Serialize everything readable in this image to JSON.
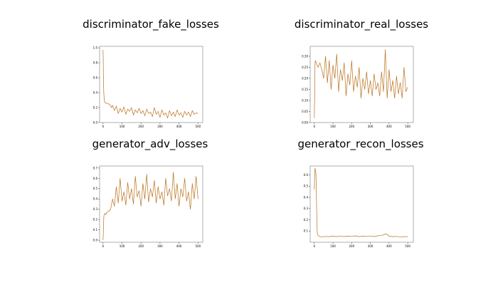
{
  "colors": {
    "line": "#b8701c",
    "axis": "#7a7a7a"
  },
  "chart_data": [
    {
      "type": "line",
      "title": "discriminator_fake_losses",
      "xlim": [
        -18,
        525
      ],
      "ylim": [
        0,
        1.02
      ],
      "xticks": [
        0,
        100,
        200,
        300,
        400,
        500
      ],
      "yticks": [
        0.0,
        0.2,
        0.4,
        0.6,
        0.8,
        1.0
      ],
      "ytick_labels": [
        "0.0",
        "0.2",
        "0.4",
        "0.6",
        "0.8",
        "1.0"
      ],
      "grid": false,
      "series": [
        {
          "x": [
            0,
            1,
            2,
            4,
            6,
            8,
            10,
            15,
            20,
            25,
            30,
            35,
            40,
            45,
            50,
            60,
            70,
            80,
            90,
            100,
            110,
            120,
            130,
            140,
            150,
            160,
            170,
            180,
            190,
            200,
            210,
            220,
            230,
            240,
            250,
            260,
            270,
            280,
            290,
            300,
            310,
            320,
            330,
            340,
            350,
            360,
            370,
            380,
            390,
            400,
            410,
            420,
            430,
            440,
            450,
            460,
            470,
            480,
            490,
            500
          ],
          "y": [
            0.97,
            0.85,
            0.6,
            0.4,
            0.32,
            0.28,
            0.27,
            0.26,
            0.26,
            0.25,
            0.25,
            0.24,
            0.22,
            0.2,
            0.23,
            0.16,
            0.22,
            0.12,
            0.19,
            0.14,
            0.21,
            0.11,
            0.18,
            0.15,
            0.2,
            0.1,
            0.17,
            0.13,
            0.19,
            0.12,
            0.16,
            0.09,
            0.18,
            0.12,
            0.14,
            0.08,
            0.2,
            0.11,
            0.15,
            0.07,
            0.17,
            0.1,
            0.13,
            0.06,
            0.16,
            0.09,
            0.14,
            0.08,
            0.17,
            0.1,
            0.13,
            0.07,
            0.15,
            0.1,
            0.14,
            0.08,
            0.16,
            0.11,
            0.13,
            0.12
          ]
        }
      ]
    },
    {
      "type": "line",
      "title": "discriminator_real_losses",
      "xlim": [
        -22,
        530
      ],
      "ylim": [
        0,
        0.345
      ],
      "xticks": [
        0,
        100,
        200,
        300,
        400,
        500
      ],
      "yticks": [
        0.0,
        0.05,
        0.1,
        0.15,
        0.2,
        0.25,
        0.3
      ],
      "ytick_labels": [
        "0.00",
        "0.05",
        "0.10",
        "0.15",
        "0.20",
        "0.25",
        "0.30"
      ],
      "grid": false,
      "series": [
        {
          "x": [
            0,
            2,
            4,
            6,
            10,
            15,
            20,
            30,
            40,
            50,
            60,
            70,
            80,
            90,
            100,
            110,
            120,
            130,
            140,
            150,
            160,
            170,
            180,
            190,
            200,
            210,
            220,
            230,
            240,
            250,
            260,
            270,
            280,
            290,
            300,
            310,
            320,
            330,
            340,
            350,
            360,
            370,
            380,
            390,
            400,
            410,
            420,
            430,
            440,
            450,
            460,
            470,
            480,
            490,
            500
          ],
          "y": [
            0.02,
            0.12,
            0.27,
            0.28,
            0.27,
            0.26,
            0.25,
            0.27,
            0.24,
            0.2,
            0.3,
            0.18,
            0.28,
            0.15,
            0.26,
            0.2,
            0.31,
            0.14,
            0.24,
            0.19,
            0.27,
            0.12,
            0.22,
            0.17,
            0.28,
            0.14,
            0.21,
            0.16,
            0.25,
            0.11,
            0.2,
            0.15,
            0.23,
            0.13,
            0.19,
            0.12,
            0.22,
            0.15,
            0.18,
            0.12,
            0.23,
            0.14,
            0.33,
            0.11,
            0.24,
            0.14,
            0.19,
            0.11,
            0.21,
            0.13,
            0.18,
            0.11,
            0.25,
            0.14,
            0.16
          ]
        }
      ]
    },
    {
      "type": "line",
      "title": "generator_adv_losses",
      "xlim": [
        -18,
        525
      ],
      "ylim": [
        -0.02,
        0.72
      ],
      "xticks": [
        0,
        100,
        200,
        300,
        400,
        500
      ],
      "yticks": [
        0.0,
        0.1,
        0.2,
        0.3,
        0.4,
        0.5,
        0.6,
        0.7
      ],
      "ytick_labels": [
        "0.0",
        "0.1",
        "0.2",
        "0.3",
        "0.4",
        "0.5",
        "0.6",
        "0.7"
      ],
      "grid": false,
      "series": [
        {
          "x": [
            0,
            2,
            4,
            6,
            10,
            15,
            20,
            30,
            40,
            50,
            60,
            70,
            80,
            90,
            100,
            110,
            120,
            130,
            140,
            150,
            160,
            170,
            180,
            190,
            200,
            210,
            220,
            230,
            240,
            250,
            260,
            270,
            280,
            290,
            300,
            310,
            320,
            330,
            340,
            350,
            360,
            370,
            380,
            390,
            400,
            410,
            420,
            430,
            440,
            450,
            460,
            470,
            480,
            490,
            500
          ],
          "y": [
            0.0,
            0.1,
            0.22,
            0.25,
            0.26,
            0.25,
            0.27,
            0.28,
            0.3,
            0.4,
            0.33,
            0.52,
            0.36,
            0.6,
            0.38,
            0.47,
            0.34,
            0.56,
            0.4,
            0.5,
            0.35,
            0.62,
            0.42,
            0.48,
            0.33,
            0.55,
            0.4,
            0.64,
            0.37,
            0.5,
            0.42,
            0.58,
            0.36,
            0.52,
            0.4,
            0.47,
            0.34,
            0.6,
            0.43,
            0.5,
            0.38,
            0.66,
            0.4,
            0.55,
            0.33,
            0.5,
            0.42,
            0.6,
            0.38,
            0.47,
            0.3,
            0.55,
            0.4,
            0.62,
            0.4
          ]
        }
      ]
    },
    {
      "type": "line",
      "title": "generator_recon_losses",
      "xlim": [
        -22,
        530
      ],
      "ylim": [
        0,
        0.68
      ],
      "xticks": [
        0,
        100,
        200,
        300,
        400,
        500
      ],
      "yticks": [
        0.1,
        0.2,
        0.3,
        0.4,
        0.5,
        0.6
      ],
      "ytick_labels": [
        "0.1",
        "0.2",
        "0.3",
        "0.4",
        "0.5",
        "0.6"
      ],
      "grid": false,
      "series": [
        {
          "x": [
            0,
            2,
            4,
            6,
            8,
            10,
            12,
            14,
            16,
            20,
            25,
            30,
            40,
            50,
            60,
            80,
            100,
            120,
            140,
            160,
            180,
            200,
            220,
            240,
            260,
            280,
            300,
            320,
            340,
            360,
            370,
            380,
            390,
            400,
            420,
            440,
            460,
            480,
            500
          ],
          "y": [
            0.47,
            0.6,
            0.66,
            0.64,
            0.63,
            0.55,
            0.35,
            0.15,
            0.08,
            0.06,
            0.055,
            0.05,
            0.048,
            0.05,
            0.052,
            0.05,
            0.055,
            0.05,
            0.056,
            0.05,
            0.055,
            0.052,
            0.057,
            0.05,
            0.055,
            0.052,
            0.056,
            0.05,
            0.058,
            0.06,
            0.065,
            0.075,
            0.07,
            0.055,
            0.05,
            0.052,
            0.048,
            0.05,
            0.05
          ]
        }
      ]
    }
  ]
}
